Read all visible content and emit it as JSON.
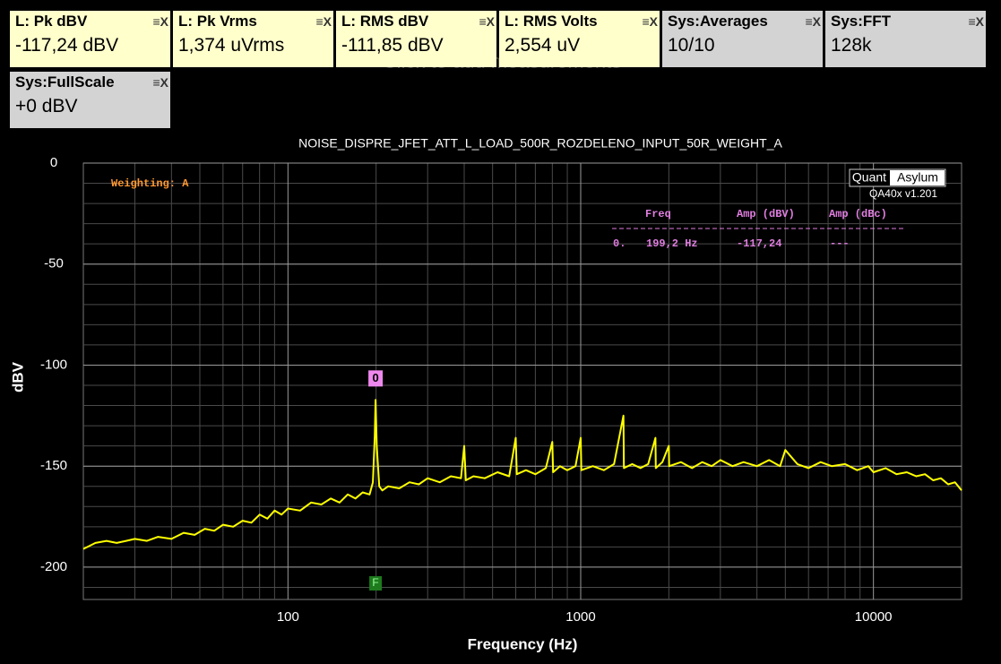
{
  "hint": "Click to add measurements",
  "panels": [
    {
      "title": "L: Pk dBV",
      "value": "-117,24 dBV"
    },
    {
      "title": "L: Pk Vrms",
      "value": "1,374 uVrms"
    },
    {
      "title": "L: RMS dBV",
      "value": "-111,85 dBV"
    },
    {
      "title": "L: RMS Volts",
      "value": "2,554 uV"
    },
    {
      "title": "Sys:Averages",
      "value": "10/10"
    },
    {
      "title": "Sys:FFT",
      "value": "128k"
    },
    {
      "title": "Sys:FullScale",
      "value": "+0 dBV"
    }
  ],
  "chart_data": {
    "type": "line",
    "title": "NOISE_DISPRE_JFET_ATT_L_LOAD_500R_ROZDELENO_INPUT_50R_WEIGHT_A",
    "x_label": "Frequency (Hz)",
    "y_label": "dBV",
    "x_scale": "log",
    "grid": true,
    "color": "#ffff00",
    "xlim": [
      20,
      20000
    ],
    "xticks": [
      100,
      1000,
      10000
    ],
    "ylim": [
      -216,
      0
    ],
    "yticks": [
      0,
      -50,
      -100,
      -150,
      -200
    ],
    "weighting": "Weighting: A",
    "logo": {
      "left": "Quant",
      "right": "Asylum",
      "version": "QA40x v1.201"
    },
    "marker": {
      "label": "0",
      "x": 199.2,
      "y": -117.24
    },
    "fundamental_marker": {
      "label": "F"
    },
    "marker_table": {
      "headers": [
        "Freq",
        "Amp (dBV)",
        "Amp (dBc)"
      ],
      "rows": [
        [
          "0.",
          "199,2 Hz",
          "-117,24",
          "---"
        ]
      ]
    },
    "x": [
      20,
      22,
      24,
      26,
      28,
      30,
      33,
      36,
      40,
      44,
      48,
      52,
      56,
      60,
      65,
      70,
      75,
      80,
      85,
      90,
      95,
      100,
      110,
      120,
      130,
      140,
      150,
      160,
      170,
      180,
      190,
      195,
      198,
      199.2,
      201,
      205,
      210,
      220,
      240,
      260,
      280,
      300,
      330,
      360,
      390,
      400,
      405,
      430,
      470,
      520,
      570,
      600,
      605,
      650,
      700,
      760,
      800,
      805,
      850,
      900,
      960,
      1000,
      1005,
      1100,
      1200,
      1300,
      1400,
      1405,
      1500,
      1600,
      1700,
      1800,
      1805,
      1900,
      2000,
      2005,
      2200,
      2400,
      2600,
      2800,
      3000,
      3300,
      3600,
      4000,
      4400,
      4800,
      5000,
      5500,
      6000,
      6600,
      7200,
      8000,
      8800,
      9600,
      10000,
      11000,
      12000,
      13000,
      14000,
      15000,
      16000,
      17000,
      18000,
      19000,
      20000
    ],
    "values": [
      -191,
      -188,
      -187,
      -188,
      -187,
      -186,
      -187,
      -185,
      -186,
      -183,
      -184,
      -181,
      -182,
      -179,
      -180,
      -177,
      -178,
      -174,
      -176,
      -172,
      -174,
      -171,
      -172,
      -168,
      -169,
      -166,
      -168,
      -164,
      -166,
      -163,
      -164,
      -158,
      -135,
      -117.24,
      -140,
      -160,
      -162,
      -160,
      -161,
      -158,
      -159,
      -156,
      -158,
      -155,
      -156,
      -140,
      -157,
      -155,
      -156,
      -153,
      -155,
      -136,
      -154,
      -152,
      -154,
      -151,
      -138,
      -153,
      -150,
      -152,
      -150,
      -136,
      -152,
      -150,
      -152,
      -149,
      -125,
      -151,
      -149,
      -151,
      -149,
      -136,
      -151,
      -148,
      -140,
      -150,
      -148,
      -151,
      -148,
      -150,
      -147,
      -150,
      -148,
      -150,
      -147,
      -150,
      -142,
      -149,
      -151,
      -148,
      -150,
      -149,
      -152,
      -150,
      -153,
      -151,
      -154,
      -153,
      -155,
      -154,
      -157,
      -156,
      -159,
      -158,
      -162
    ]
  }
}
